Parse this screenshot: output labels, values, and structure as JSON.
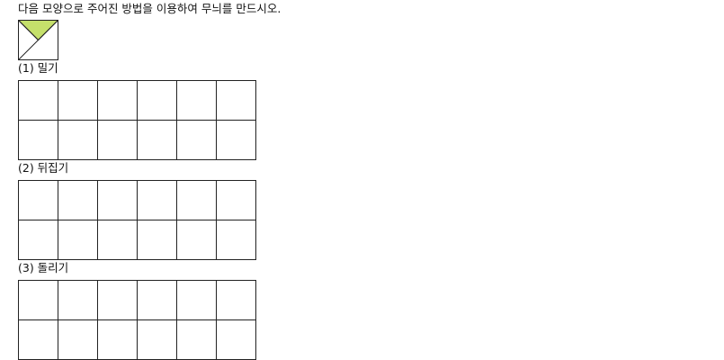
{
  "instruction": "다음 모양으로 주어진 방법을 이용하여 무늬를 만드시오.",
  "motif": {
    "fill_color": "#c5e06b",
    "line_color": "#222222",
    "icon": "square-with-diagonals-triangle-motif"
  },
  "sections": [
    {
      "label": "(1) 밀기",
      "rows": 2,
      "cols": 6
    },
    {
      "label": "(2) 뒤집기",
      "rows": 2,
      "cols": 6
    },
    {
      "label": "(3) 돌리기",
      "rows": 2,
      "cols": 6
    }
  ]
}
